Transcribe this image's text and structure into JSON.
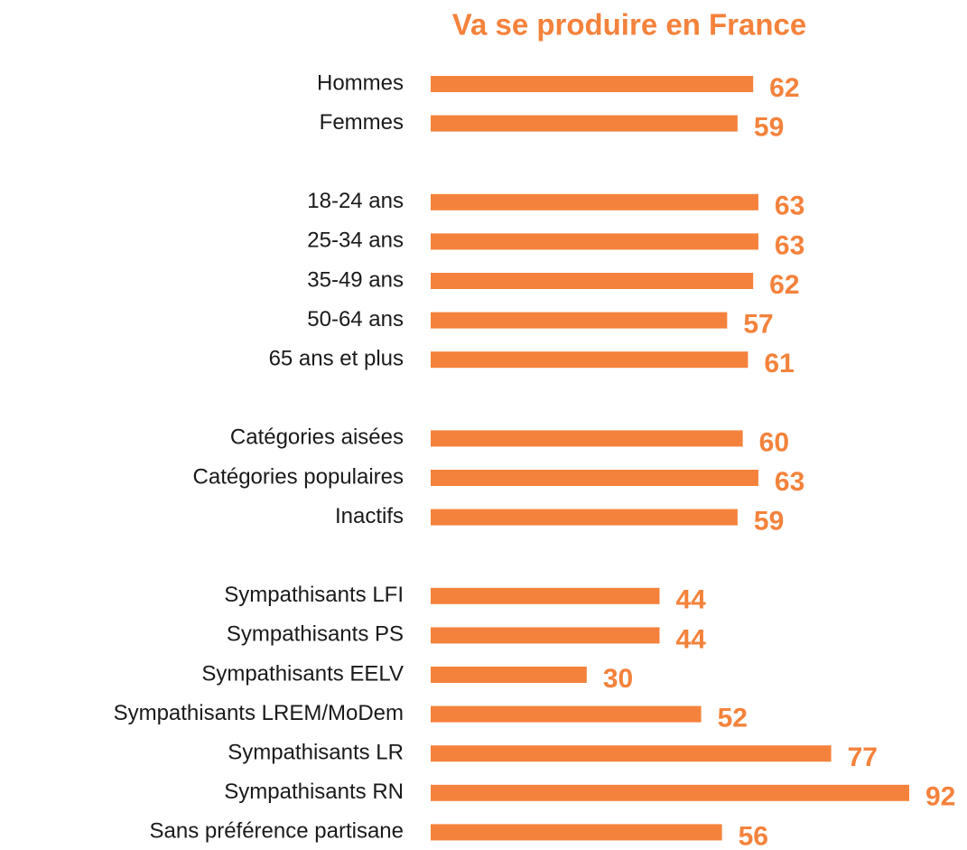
{
  "chart_data": {
    "type": "bar",
    "orientation": "horizontal",
    "title": "Va se produire en France",
    "color": "#f4823c",
    "categories": [
      "Hommes",
      "Femmes",
      null,
      "18-24 ans",
      "25-34 ans",
      "35-49 ans",
      "50-64 ans",
      "65 ans et plus",
      null,
      "Catégories aisées",
      "Catégories populaires",
      "Inactifs",
      null,
      "Sympathisants LFI",
      "Sympathisants PS",
      "Sympathisants EELV",
      "Sympathisants LREM/MoDem",
      "Sympathisants LR",
      "Sympathisants RN",
      "Sans préférence partisane"
    ],
    "values": [
      62,
      59,
      null,
      63,
      63,
      62,
      57,
      61,
      null,
      60,
      63,
      59,
      null,
      44,
      44,
      30,
      52,
      77,
      92,
      56
    ]
  }
}
